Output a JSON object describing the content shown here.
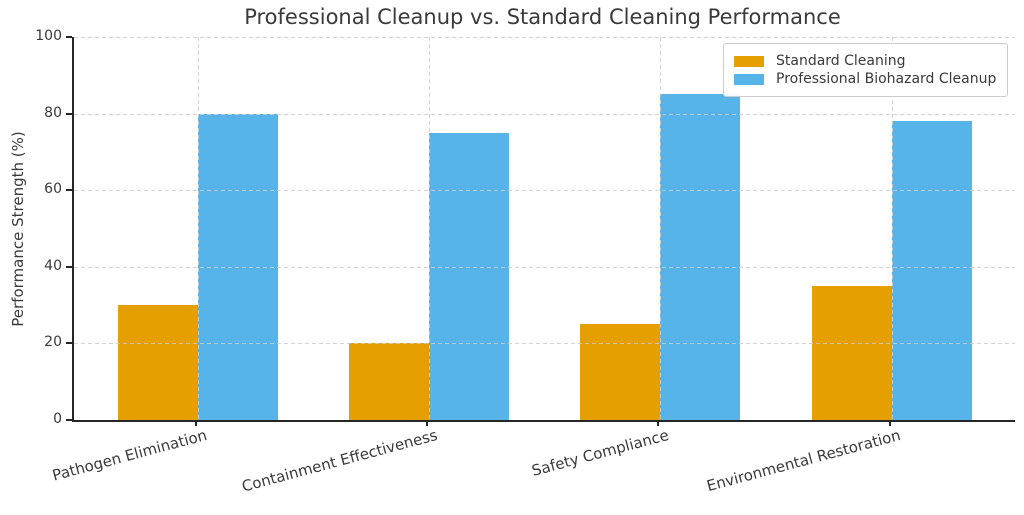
{
  "chart_data": {
    "type": "bar",
    "title": "Professional Cleanup vs. Standard Cleaning Performance",
    "ylabel": "Performance Strength (%)",
    "xlabel": "",
    "categories": [
      "Pathogen Elimination",
      "Containment Effectiveness",
      "Safety Compliance",
      "Environmental Restoration"
    ],
    "series": [
      {
        "name": "Standard Cleaning",
        "color": "#E69F00",
        "values": [
          30,
          20,
          25,
          35
        ]
      },
      {
        "name": "Professional Biohazard Cleanup",
        "color": "#56B4E9",
        "values": [
          80,
          75,
          85,
          78
        ]
      }
    ],
    "ylim": [
      0,
      100
    ],
    "yticks": [
      0,
      20,
      40,
      60,
      80,
      100
    ],
    "grid": true,
    "grid_style": "dashed",
    "grid_axes": "both",
    "legend_position": "upper right",
    "colors": {
      "axis": "#262626",
      "grid": "#cbcbcb",
      "text": "#3a3a3a",
      "legend_border": "#cccccc",
      "background": "#ffffff"
    }
  }
}
